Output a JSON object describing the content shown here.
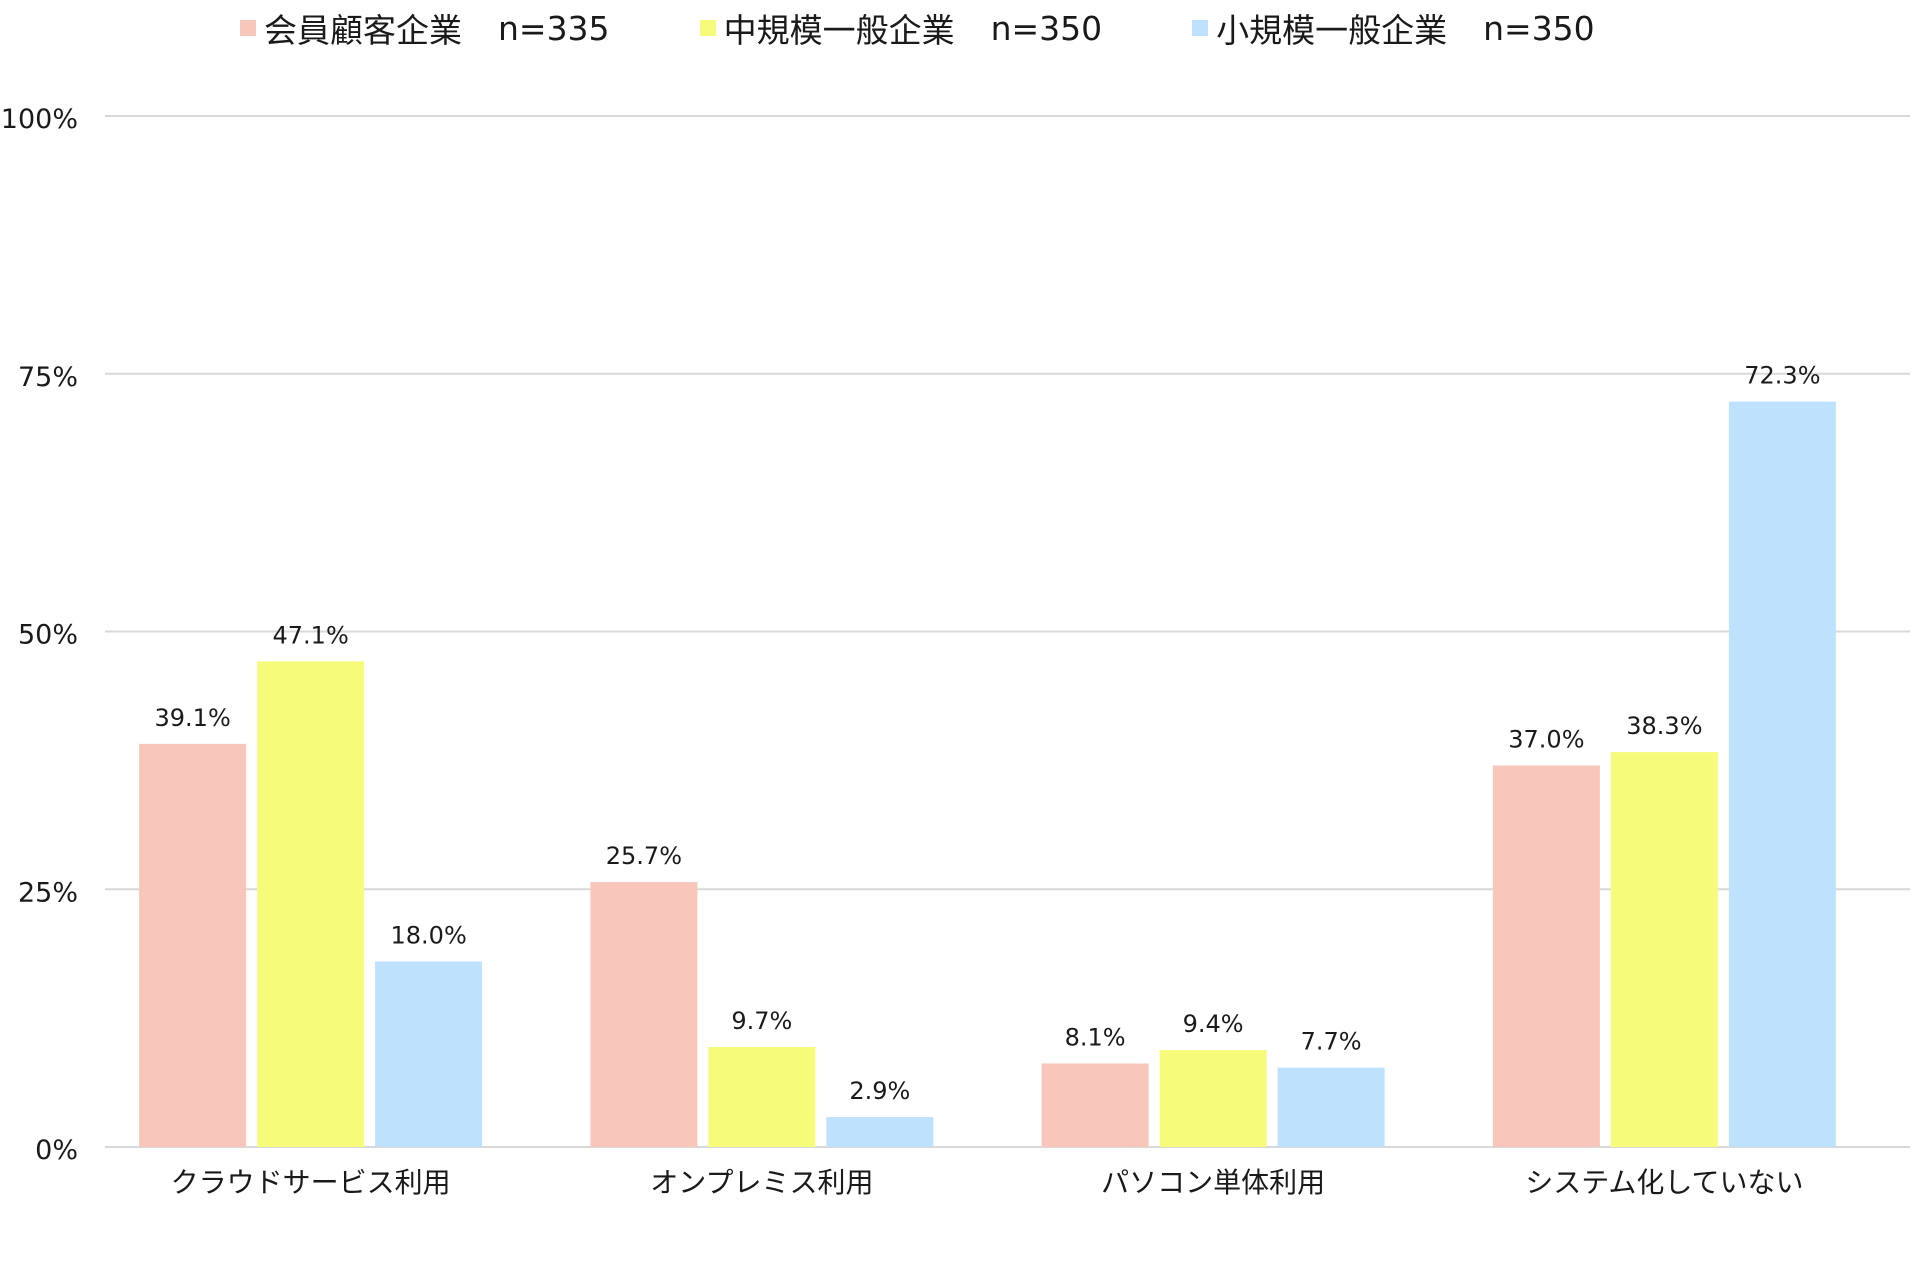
{
  "chart_data": {
    "type": "bar",
    "categories": [
      "クラウドサービス利用",
      "オンプレミス利用",
      "パソコン単体利用",
      "システム化していない"
    ],
    "series": [
      {
        "name": "会員顧客企業",
        "n_label": "n=335",
        "color": "#F9C6BC",
        "values": [
          39.1,
          25.7,
          8.1,
          37.0
        ],
        "labels": [
          "39.1%",
          "25.7%",
          "8.1%",
          "37.0%"
        ]
      },
      {
        "name": "中規模一般企業",
        "n_label": "n=350",
        "color": "#F7FB7A",
        "values": [
          47.1,
          9.7,
          9.4,
          38.3
        ],
        "labels": [
          "47.1%",
          "9.7%",
          "9.4%",
          "38.3%"
        ]
      },
      {
        "name": "小規模一般企業",
        "n_label": "n=350",
        "color": "#BEE2FD",
        "values": [
          18.0,
          2.9,
          7.7,
          72.3
        ],
        "labels": [
          "18.0%",
          "2.9%",
          "7.7%",
          "72.3%"
        ]
      }
    ],
    "ylim": [
      0,
      100
    ],
    "yticks": [
      0,
      25,
      50,
      75,
      100
    ],
    "ytick_labels": [
      "0%",
      "25%",
      "50%",
      "75%",
      "100%"
    ],
    "grid": true,
    "legend_position": "top"
  },
  "colors": {
    "grid": "#d9d9d9",
    "text": "#1a1a1a"
  }
}
